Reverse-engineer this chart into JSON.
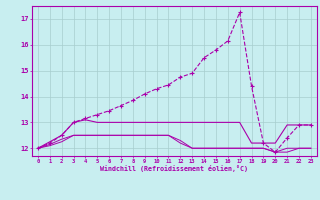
{
  "bg_color": "#c8eef0",
  "grid_color": "#a8cece",
  "line_color": "#aa00aa",
  "xlim": [
    -0.5,
    23.5
  ],
  "ylim": [
    11.7,
    17.5
  ],
  "xticks": [
    0,
    1,
    2,
    3,
    4,
    5,
    6,
    7,
    8,
    9,
    10,
    11,
    12,
    13,
    14,
    15,
    16,
    17,
    18,
    19,
    20,
    21,
    22,
    23
  ],
  "yticks": [
    12,
    13,
    14,
    15,
    16,
    17
  ],
  "xlabel": "Windchill (Refroidissement éolien,°C)",
  "line1_x": [
    0,
    1,
    2,
    3,
    4,
    5,
    6,
    7,
    8,
    9,
    10,
    11,
    12,
    13,
    14,
    15,
    16,
    17,
    18,
    19,
    20,
    21,
    22,
    23
  ],
  "line1_y": [
    12.0,
    12.2,
    12.5,
    13.0,
    13.15,
    13.3,
    13.45,
    13.65,
    13.85,
    14.1,
    14.3,
    14.45,
    14.75,
    14.9,
    15.5,
    15.8,
    16.15,
    17.25,
    14.4,
    12.2,
    11.85,
    12.4,
    12.9,
    12.9
  ],
  "line2_x": [
    0,
    1,
    2,
    3,
    4,
    5,
    6,
    7,
    8,
    9,
    10,
    11,
    12,
    13,
    14,
    15,
    16,
    17,
    18,
    19,
    20,
    21,
    22,
    23
  ],
  "line2_y": [
    12.0,
    12.25,
    12.5,
    13.0,
    13.1,
    13.0,
    13.0,
    13.0,
    13.0,
    13.0,
    13.0,
    13.0,
    13.0,
    13.0,
    13.0,
    13.0,
    13.0,
    13.0,
    12.2,
    12.2,
    12.2,
    12.9,
    12.9,
    12.9
  ],
  "line3_x": [
    0,
    1,
    2,
    3,
    4,
    5,
    6,
    7,
    8,
    9,
    10,
    11,
    12,
    13,
    14,
    15,
    16,
    17,
    18,
    19,
    20,
    21,
    22,
    23
  ],
  "line3_y": [
    12.0,
    12.15,
    12.35,
    12.5,
    12.5,
    12.5,
    12.5,
    12.5,
    12.5,
    12.5,
    12.5,
    12.5,
    12.3,
    12.0,
    12.0,
    12.0,
    12.0,
    12.0,
    12.0,
    12.0,
    11.85,
    11.85,
    12.0,
    12.0
  ],
  "line4_x": [
    0,
    1,
    2,
    3,
    4,
    5,
    6,
    7,
    8,
    9,
    10,
    11,
    12,
    13,
    14,
    15,
    16,
    17,
    18,
    19,
    20,
    21,
    22,
    23
  ],
  "line4_y": [
    12.0,
    12.1,
    12.25,
    12.5,
    12.5,
    12.5,
    12.5,
    12.5,
    12.5,
    12.5,
    12.5,
    12.5,
    12.2,
    12.0,
    12.0,
    12.0,
    12.0,
    12.0,
    12.0,
    12.0,
    11.85,
    12.0,
    12.0,
    12.0
  ]
}
